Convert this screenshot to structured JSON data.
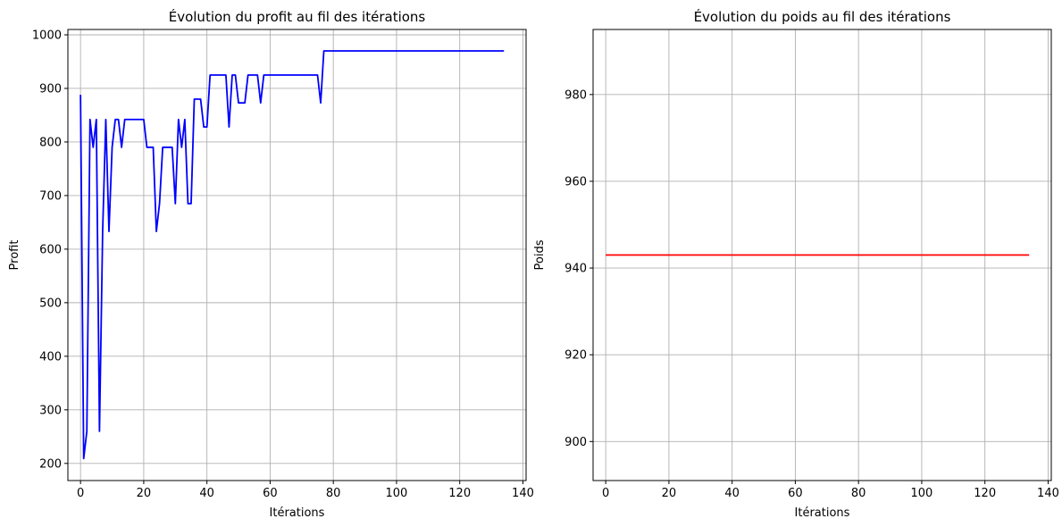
{
  "chart_data": [
    {
      "type": "line",
      "title": "Évolution du profit au fil des itérations",
      "xlabel": "Itérations",
      "ylabel": "Profit",
      "xlim": [
        -4,
        141
      ],
      "ylim": [
        168,
        1010
      ],
      "xticks": [
        0,
        20,
        40,
        60,
        80,
        100,
        120,
        140
      ],
      "yticks": [
        200,
        300,
        400,
        500,
        600,
        700,
        800,
        900,
        1000
      ],
      "grid": true,
      "series": [
        {
          "color": "#0000ff",
          "x": [
            0,
            1,
            2,
            3,
            4,
            5,
            6,
            7,
            8,
            9,
            10,
            11,
            12,
            13,
            14,
            15,
            16,
            17,
            18,
            19,
            20,
            21,
            22,
            23,
            24,
            25,
            26,
            27,
            28,
            29,
            30,
            31,
            32,
            33,
            34,
            35,
            36,
            37,
            38,
            39,
            40,
            41,
            42,
            43,
            44,
            45,
            46,
            47,
            48,
            49,
            50,
            51,
            52,
            53,
            54,
            55,
            56,
            57,
            58,
            59,
            60,
            61,
            62,
            63,
            64,
            65,
            66,
            67,
            68,
            69,
            70,
            71,
            72,
            73,
            74,
            75,
            76,
            77,
            78,
            79,
            80,
            134
          ],
          "y": [
            888,
            209,
            260,
            842,
            790,
            842,
            260,
            633,
            842,
            633,
            790,
            842,
            842,
            790,
            842,
            842,
            842,
            842,
            842,
            842,
            842,
            790,
            790,
            790,
            633,
            685,
            790,
            790,
            790,
            790,
            685,
            842,
            790,
            842,
            685,
            685,
            880,
            880,
            880,
            828,
            828,
            925,
            925,
            925,
            925,
            925,
            925,
            828,
            925,
            925,
            873,
            873,
            873,
            925,
            925,
            925,
            925,
            873,
            925,
            925,
            925,
            925,
            925,
            925,
            925,
            925,
            925,
            925,
            925,
            925,
            925,
            925,
            925,
            925,
            925,
            925,
            873,
            970,
            970,
            970,
            970,
            970
          ]
        }
      ]
    },
    {
      "type": "line",
      "title": "Évolution du poids au fil des itérations",
      "xlabel": "Itérations",
      "ylabel": "Poids",
      "xlim": [
        -4,
        141
      ],
      "ylim": [
        891,
        995
      ],
      "xticks": [
        0,
        20,
        40,
        60,
        80,
        100,
        120,
        140
      ],
      "yticks": [
        900,
        920,
        940,
        960,
        980
      ],
      "grid": true,
      "series": [
        {
          "color": "#ff0000",
          "x": [
            0,
            134
          ],
          "y": [
            943,
            943
          ]
        }
      ]
    }
  ]
}
